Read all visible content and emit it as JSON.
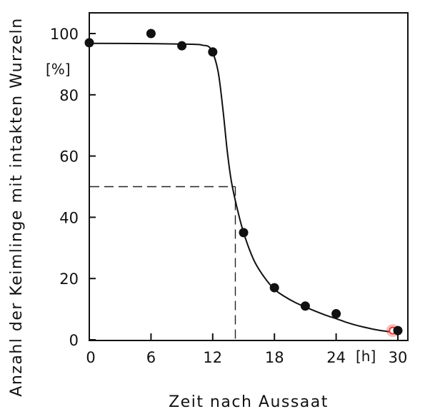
{
  "chart_data": {
    "type": "scatter",
    "title": "",
    "xlabel": "Zeit nach Aussaat",
    "ylabel": "Anzahl der Keimlinge mit intakten Wurzeln",
    "x_unit": "[h]",
    "y_unit": "[%]",
    "xlim": [
      0,
      31
    ],
    "ylim": [
      0,
      103
    ],
    "x_ticks": [
      0,
      6,
      12,
      18,
      24,
      30
    ],
    "y_ticks": [
      0,
      20,
      40,
      60,
      80,
      100
    ],
    "grid": false,
    "series": [
      {
        "points": [
          {
            "x": 0,
            "y": 97
          },
          {
            "x": 6,
            "y": 100
          },
          {
            "x": 9,
            "y": 96
          },
          {
            "x": 12,
            "y": 94
          },
          {
            "x": 15,
            "y": 35
          },
          {
            "x": 18,
            "y": 17
          },
          {
            "x": 21,
            "y": 11
          },
          {
            "x": 24,
            "y": 8.5
          },
          {
            "x": 29.5,
            "y": 3
          },
          {
            "x": 30,
            "y": 3
          }
        ]
      }
    ],
    "fit_curve": [
      [
        0,
        96.8
      ],
      [
        6,
        96.7
      ],
      [
        10,
        96.5
      ],
      [
        11,
        96.2
      ],
      [
        11.8,
        95
      ],
      [
        12.5,
        88
      ],
      [
        13,
        75
      ],
      [
        13.4,
        62
      ],
      [
        13.8,
        52
      ],
      [
        14.3,
        44
      ],
      [
        15,
        35
      ],
      [
        16,
        26
      ],
      [
        17,
        20.5
      ],
      [
        18,
        16.5
      ],
      [
        19,
        14.1
      ],
      [
        20,
        12.2
      ],
      [
        21,
        10.7
      ],
      [
        22,
        9.3
      ],
      [
        23,
        8
      ],
      [
        24,
        6.9
      ],
      [
        25,
        5.7
      ],
      [
        26,
        4.7
      ],
      [
        27,
        3.9
      ],
      [
        28,
        3.2
      ],
      [
        29,
        2.7
      ],
      [
        30,
        2.3
      ]
    ],
    "reference": {
      "x": 14.2,
      "y": 50
    },
    "highlight_color": "#e8413c"
  }
}
